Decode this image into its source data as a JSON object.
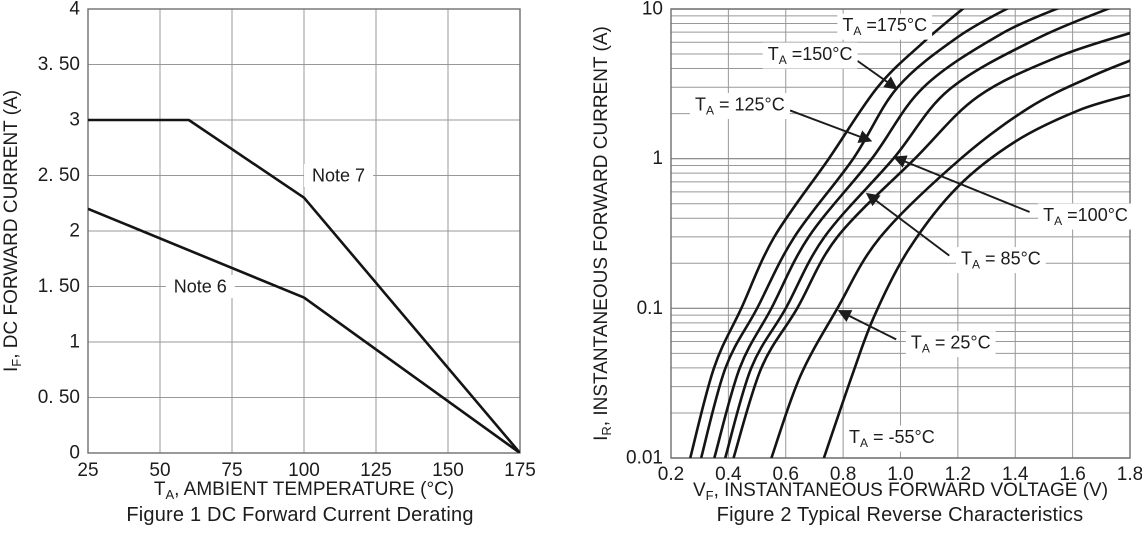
{
  "page": {
    "background": "#ffffff",
    "ink": "#1c1c1c",
    "grid_color": "#989898",
    "grid_major_color": "#7f7f7f",
    "frame_color": "#6f6f6f",
    "curve_color": "#141414"
  },
  "chart_data": [
    {
      "id": "fig1",
      "type": "line",
      "title": "Figure 1 DC Forward Current Derating",
      "xlabel": {
        "sym": "T",
        "sub": "A",
        "rest": ", AMBIENT TEMPERATURE (°C)"
      },
      "ylabel": {
        "sym": "I",
        "sub": "F",
        "rest": ", DC FORWARD CURRENT (A)"
      },
      "xscale": "linear",
      "yscale": "linear",
      "xlim": [
        25,
        175
      ],
      "ylim": [
        0,
        4
      ],
      "grid": {
        "x_step": 25,
        "y_step": 0.5
      },
      "xticks": [
        {
          "v": 25,
          "label": "25"
        },
        {
          "v": 50,
          "label": "50"
        },
        {
          "v": 75,
          "label": "75"
        },
        {
          "v": 100,
          "label": "100"
        },
        {
          "v": 125,
          "label": "125"
        },
        {
          "v": 150,
          "label": "150"
        },
        {
          "v": 175,
          "label": "175"
        }
      ],
      "yticks": [
        {
          "v": 4,
          "label": "4"
        },
        {
          "v": 3.5,
          "label": "3. 50"
        },
        {
          "v": 3,
          "label": "3"
        },
        {
          "v": 2.5,
          "label": "2. 50"
        },
        {
          "v": 2,
          "label": "2"
        },
        {
          "v": 1.5,
          "label": "1. 50"
        },
        {
          "v": 1,
          "label": "1"
        },
        {
          "v": 0.5,
          "label": "0. 50"
        },
        {
          "v": 0,
          "label": "0"
        }
      ],
      "series": [
        {
          "name": "Note 7",
          "smooth": false,
          "points": [
            [
              25,
              3
            ],
            [
              60,
              3
            ],
            [
              100,
              2.3
            ],
            [
              175,
              0
            ]
          ]
        },
        {
          "name": "Note 6",
          "smooth": false,
          "points": [
            [
              25,
              2.2
            ],
            [
              100,
              1.4
            ],
            [
              175,
              0
            ]
          ]
        }
      ],
      "annotations": [
        {
          "text": "Note 7",
          "x": 112,
          "y": 2.5
        },
        {
          "text": "Note 6",
          "x": 64,
          "y": 1.5
        }
      ]
    },
    {
      "id": "fig2",
      "type": "line",
      "title": "Figure 2 Typical Reverse Characteristics",
      "xlabel": {
        "sym": "V",
        "sub": "F",
        "rest": ", INSTANTANEOUS FORWARD VOLTAGE (V)"
      },
      "ylabel": {
        "sym": "I",
        "sub": "R",
        "rest": ", INSTANTANEOUS FORWARD CURRENT (A)"
      },
      "xscale": "linear",
      "yscale": "log",
      "xlim": [
        0.2,
        1.8
      ],
      "ylim": [
        0.01,
        10
      ],
      "grid": {
        "x_step": 0.2,
        "log_minors": true
      },
      "xticks": [
        {
          "v": 0.2,
          "label": "0.2"
        },
        {
          "v": 0.4,
          "label": "0.4"
        },
        {
          "v": 0.6,
          "label": "0.6"
        },
        {
          "v": 0.8,
          "label": "0.8"
        },
        {
          "v": 1.0,
          "label": "1.0"
        },
        {
          "v": 1.2,
          "label": "1.2"
        },
        {
          "v": 1.4,
          "label": "1.4"
        },
        {
          "v": 1.6,
          "label": "1.6"
        },
        {
          "v": 1.8,
          "label": "1.8"
        }
      ],
      "yticks": [
        {
          "v": 10,
          "label": "10"
        },
        {
          "v": 1,
          "label": "1"
        },
        {
          "v": 0.1,
          "label": "0.1"
        },
        {
          "v": 0.01,
          "label": "0.01"
        }
      ],
      "series": [
        {
          "name": "TA = 175°C",
          "smooth": true,
          "points": [
            [
              0.267,
              0.01
            ],
            [
              0.35,
              0.04
            ],
            [
              0.445,
              0.1
            ],
            [
              0.56,
              0.3
            ],
            [
              0.75,
              1.0
            ],
            [
              0.92,
              3.0
            ],
            [
              1.08,
              6.0
            ],
            [
              1.23,
              10.5
            ]
          ]
        },
        {
          "name": "TA = 150°C",
          "smooth": true,
          "points": [
            [
              0.305,
              0.01
            ],
            [
              0.39,
              0.04
            ],
            [
              0.5,
              0.1
            ],
            [
              0.63,
              0.3
            ],
            [
              0.835,
              1.0
            ],
            [
              0.99,
              3.0
            ],
            [
              1.2,
              6.5
            ],
            [
              1.39,
              10.5
            ]
          ]
        },
        {
          "name": "TA = 125°C",
          "smooth": true,
          "points": [
            [
              0.351,
              0.01
            ],
            [
              0.44,
              0.04
            ],
            [
              0.55,
              0.1
            ],
            [
              0.68,
              0.3
            ],
            [
              0.9,
              1.0
            ],
            [
              1.08,
              3.0
            ],
            [
              1.35,
              6.8
            ],
            [
              1.57,
              10.5
            ]
          ]
        },
        {
          "name": "TA = 100°C",
          "smooth": true,
          "points": [
            [
              0.389,
              0.01
            ],
            [
              0.48,
              0.04
            ],
            [
              0.6,
              0.1
            ],
            [
              0.735,
              0.3
            ],
            [
              0.975,
              1.0
            ],
            [
              1.17,
              2.9
            ],
            [
              1.48,
              6.4
            ],
            [
              1.75,
              10.5
            ]
          ]
        },
        {
          "name": "TA = 85°C",
          "smooth": true,
          "points": [
            [
              0.418,
              0.01
            ],
            [
              0.515,
              0.04
            ],
            [
              0.64,
              0.1
            ],
            [
              0.78,
              0.3
            ],
            [
              1.05,
              1.0
            ],
            [
              1.27,
              2.6
            ],
            [
              1.55,
              4.8
            ],
            [
              1.81,
              7.0
            ]
          ]
        },
        {
          "name": "TA = 25°C",
          "smooth": true,
          "points": [
            [
              0.55,
              0.01
            ],
            [
              0.65,
              0.035
            ],
            [
              0.78,
              0.1
            ],
            [
              0.93,
              0.3
            ],
            [
              1.21,
              1.0
            ],
            [
              1.45,
              2.2
            ],
            [
              1.66,
              3.5
            ],
            [
              1.81,
              4.6
            ]
          ]
        },
        {
          "name": "TA = -55°C",
          "smooth": true,
          "points": [
            [
              0.733,
              0.01
            ],
            [
              0.83,
              0.035
            ],
            [
              0.91,
              0.09
            ],
            [
              1.03,
              0.25
            ],
            [
              1.2,
              0.65
            ],
            [
              1.4,
              1.3
            ],
            [
              1.62,
              2.1
            ],
            [
              1.81,
              2.7
            ]
          ]
        }
      ],
      "annotations": [
        {
          "pre": "T",
          "sub": "A",
          "post": " =175°C",
          "x": 0.945,
          "y": 7.8,
          "leader": [
            1.005,
            7.8,
            1.075,
            7.8
          ]
        },
        {
          "pre": "T",
          "sub": "A",
          "post": " =150°C",
          "x": 0.685,
          "y": 5.0,
          "arrow": [
            0.85,
            4.5,
            0.985,
            2.95
          ]
        },
        {
          "pre": "T",
          "sub": "A",
          "post": " = 125°C",
          "x": 0.44,
          "y": 2.3,
          "arrow": [
            0.615,
            2.1,
            0.895,
            1.32
          ]
        },
        {
          "pre": "T",
          "sub": "A",
          "post": " =100°C",
          "x": 1.645,
          "y": 0.42,
          "arrow": [
            1.45,
            0.44,
            0.98,
            1.02
          ]
        },
        {
          "pre": "T",
          "sub": "A",
          "post": " = 85°C",
          "x": 1.35,
          "y": 0.215,
          "arrow": [
            1.17,
            0.225,
            0.885,
            0.58
          ]
        },
        {
          "pre": "T",
          "sub": "A",
          "post": " = 25°C",
          "x": 1.175,
          "y": 0.059,
          "arrow": [
            0.985,
            0.062,
            0.787,
            0.096
          ]
        },
        {
          "pre": "T",
          "sub": "A",
          "post": " = -55°C",
          "x": 0.97,
          "y": 0.0138
        }
      ]
    }
  ]
}
